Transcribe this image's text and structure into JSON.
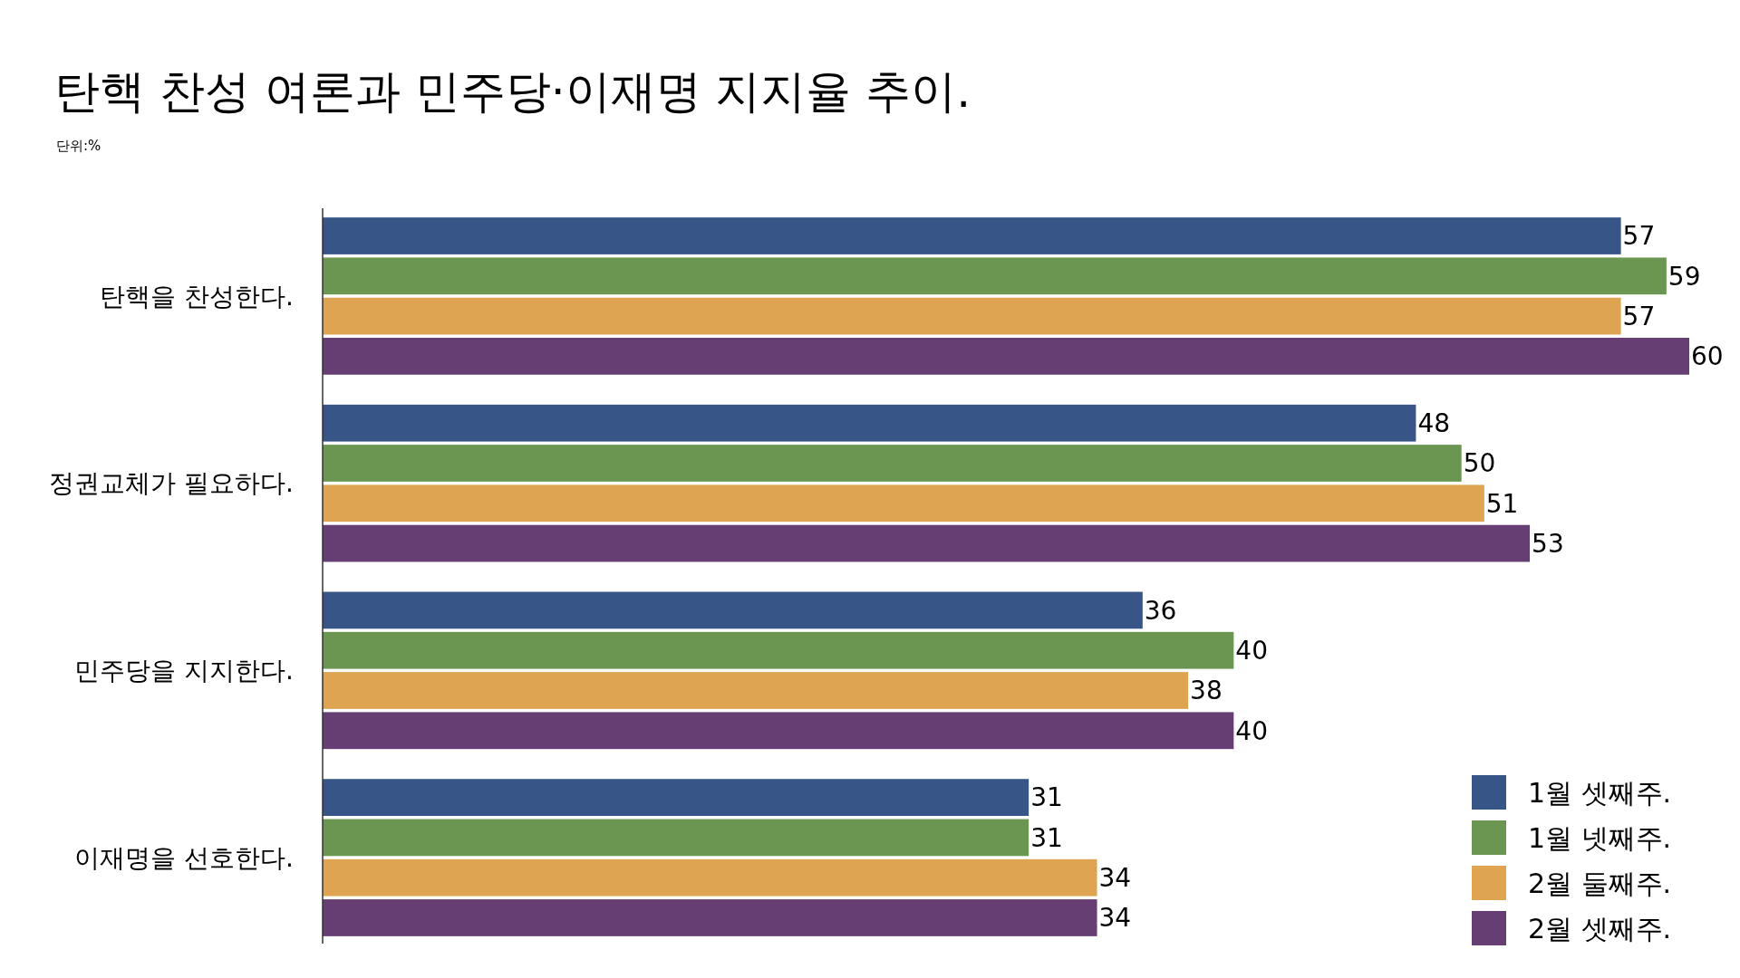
{
  "chart_data": {
    "type": "bar",
    "orientation": "horizontal",
    "title": "탄핵 찬성 여론과 민주당·이재명 지지율 추이.",
    "subtitle": "단위:%",
    "categories": [
      "탄핵을 찬성한다.",
      "정권교체가 필요하다.",
      "민주당을 지지한다.",
      "이재명을 선호한다."
    ],
    "series": [
      {
        "name": "1월 셋째주.",
        "color": "#375587",
        "values": [
          57,
          48,
          36,
          31
        ]
      },
      {
        "name": "1월 넷째주.",
        "color": "#6a9652",
        "values": [
          59,
          50,
          40,
          31
        ]
      },
      {
        "name": "2월 둘째주.",
        "color": "#dea451",
        "values": [
          57,
          51,
          38,
          34
        ]
      },
      {
        "name": "2월 셋째주.",
        "color": "#673e74",
        "values": [
          60,
          53,
          40,
          34
        ]
      }
    ],
    "xlim": [
      0,
      60
    ],
    "data_labels": true,
    "legend": "bottom right",
    "grid": false,
    "tick_labels": "y"
  }
}
